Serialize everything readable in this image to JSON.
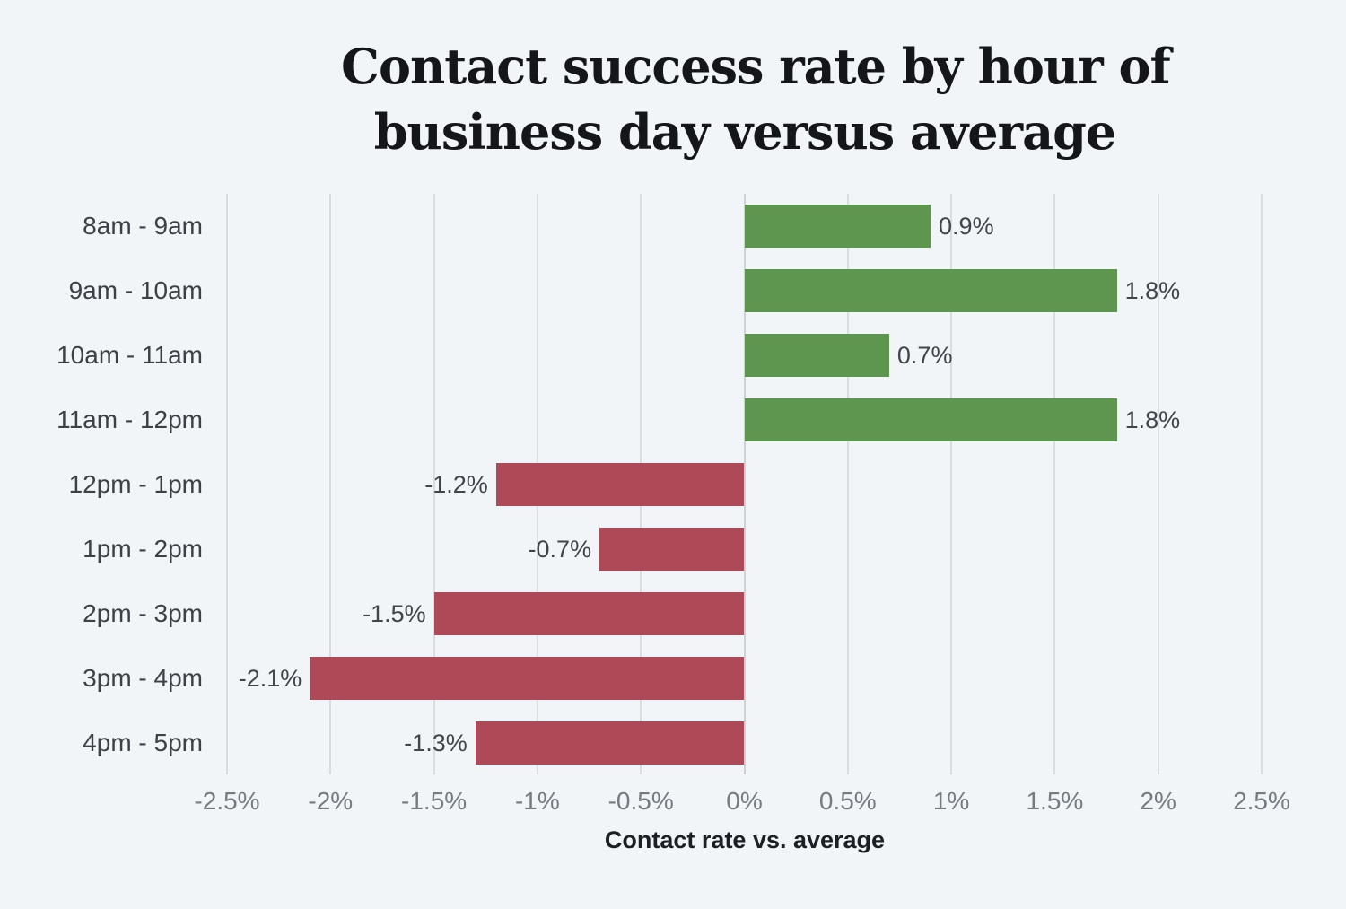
{
  "page": {
    "background": "#f1f5f8"
  },
  "chart_data": {
    "type": "bar",
    "orientation": "horizontal",
    "title": "Contact success rate by hour of business day versus average",
    "title_lines": [
      "Contact success rate by hour of",
      "business day versus average"
    ],
    "categories": [
      "8am - 9am",
      "9am - 10am",
      "10am - 11am",
      "11am - 12pm",
      "12pm - 1pm",
      "1pm - 2pm",
      "2pm - 3pm",
      "3pm - 4pm",
      "4pm - 5pm"
    ],
    "values": [
      0.9,
      1.8,
      0.7,
      1.8,
      -1.2,
      -0.7,
      -1.5,
      -2.1,
      -1.3
    ],
    "value_labels": [
      "0.9%",
      "1.8%",
      "0.7%",
      "1.8%",
      "-1.2%",
      "-0.7%",
      "-1.5%",
      "-2.1%",
      "-1.3%"
    ],
    "xlabel": "Contact rate vs. average",
    "ylabel": "",
    "xlim": [
      -2.5,
      2.5
    ],
    "x_ticks": [
      -2.5,
      -2,
      -1.5,
      -1,
      -0.5,
      0,
      0.5,
      1,
      1.5,
      2,
      2.5
    ],
    "x_tick_labels": [
      "-2.5%",
      "-2%",
      "-1.5%",
      "-1%",
      "-0.5%",
      "0%",
      "0.5%",
      "1%",
      "1.5%",
      "2%",
      "2.5%"
    ],
    "grid": true,
    "legend": false,
    "colors": {
      "positive": "#5e9650",
      "negative": "#ae4a57",
      "background": "#f1f5f8",
      "gridline": "#d9dde1"
    }
  }
}
